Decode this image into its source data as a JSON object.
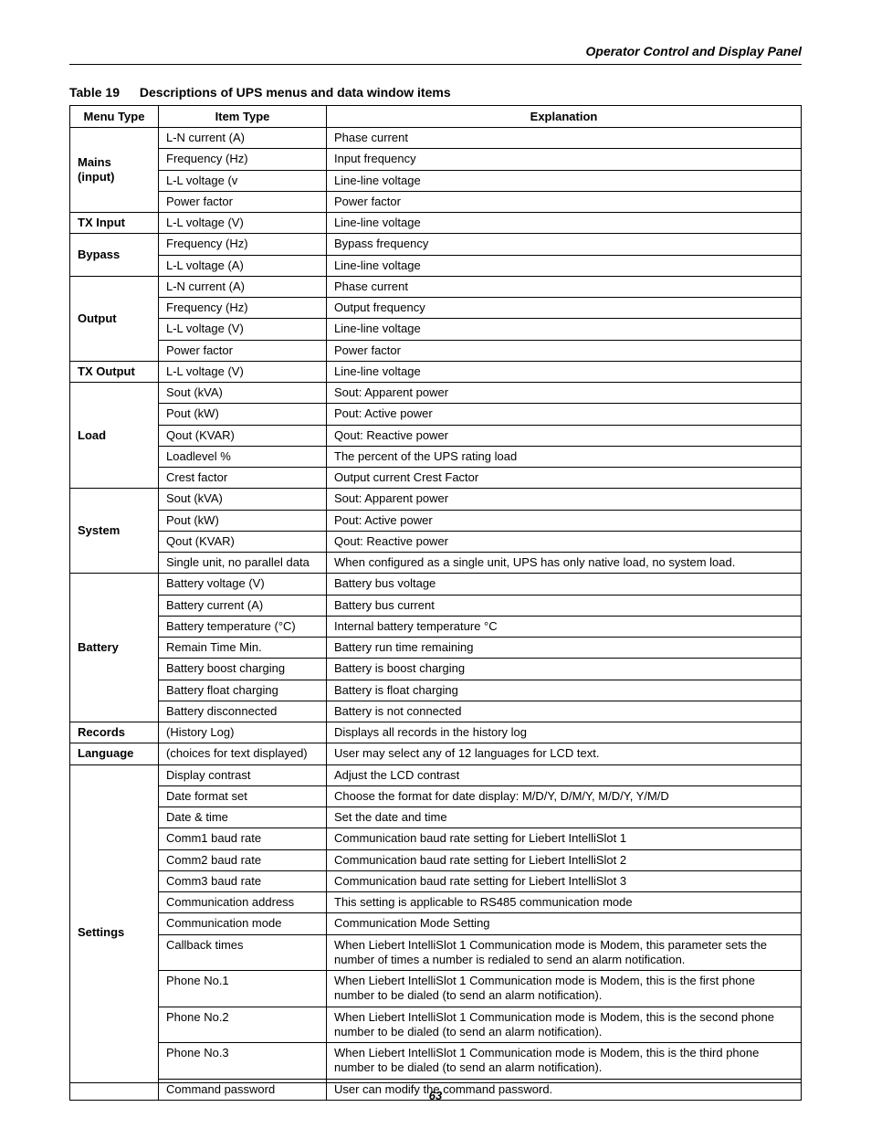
{
  "header": {
    "section_title": "Operator Control and Display Panel"
  },
  "table": {
    "number": "Table 19",
    "title": "Descriptions of UPS menus and data window items",
    "columns": [
      "Menu Type",
      "Item Type",
      "Explanation"
    ],
    "groups": [
      {
        "menu": "Mains (input)",
        "rows": [
          {
            "item": "L-N current (A)",
            "expl": "Phase current"
          },
          {
            "item": "Frequency (Hz)",
            "expl": "Input frequency"
          },
          {
            "item": "L-L voltage (v",
            "expl": "Line-line voltage"
          },
          {
            "item": "Power factor",
            "expl": "Power factor"
          }
        ]
      },
      {
        "menu": "TX Input",
        "rows": [
          {
            "item": "L-L voltage (V)",
            "expl": "Line-line voltage"
          }
        ]
      },
      {
        "menu": "Bypass",
        "rows": [
          {
            "item": "Frequency (Hz)",
            "expl": "Bypass frequency"
          },
          {
            "item": "L-L voltage (A)",
            "expl": "Line-line voltage"
          }
        ]
      },
      {
        "menu": "Output",
        "rows": [
          {
            "item": "L-N current (A)",
            "expl": "Phase current"
          },
          {
            "item": "Frequency (Hz)",
            "expl": "Output frequency"
          },
          {
            "item": "L-L voltage (V)",
            "expl": "Line-line voltage"
          },
          {
            "item": "Power factor",
            "expl": "Power factor"
          }
        ]
      },
      {
        "menu": "TX Output",
        "rows": [
          {
            "item": "L-L voltage (V)",
            "expl": "Line-line voltage"
          }
        ]
      },
      {
        "menu": "Load",
        "rows": [
          {
            "item": "Sout (kVA)",
            "expl": "Sout: Apparent power"
          },
          {
            "item": "Pout (kW)",
            "expl": "Pout: Active power"
          },
          {
            "item": "Qout (KVAR)",
            "expl": "Qout: Reactive power"
          },
          {
            "item": "Loadlevel %",
            "expl": "The percent of the UPS rating load"
          },
          {
            "item": "Crest factor",
            "expl": "Output current Crest Factor"
          }
        ]
      },
      {
        "menu": "System",
        "rows": [
          {
            "item": "Sout (kVA)",
            "expl": "Sout: Apparent power"
          },
          {
            "item": "Pout (kW)",
            "expl": "Pout: Active power"
          },
          {
            "item": "Qout (KVAR)",
            "expl": "Qout: Reactive power"
          },
          {
            "item": "Single unit, no parallel data",
            "expl": "When configured as a single unit, UPS has only native load, no system load."
          }
        ]
      },
      {
        "menu": "Battery",
        "rows": [
          {
            "item": "Battery voltage (V)",
            "expl": "Battery bus voltage"
          },
          {
            "item": "Battery current (A)",
            "expl": "Battery bus current"
          },
          {
            "item": "Battery temperature (°C)",
            "expl": "Internal battery temperature °C"
          },
          {
            "item": "Remain Time Min.",
            "expl": "Battery run time remaining"
          },
          {
            "item": "Battery boost charging",
            "expl": "Battery is boost charging"
          },
          {
            "item": "Battery float charging",
            "expl": "Battery is float charging"
          },
          {
            "item": "Battery disconnected",
            "expl": "Battery is not connected"
          }
        ]
      },
      {
        "menu": "Records",
        "rows": [
          {
            "item": "(History Log)",
            "expl": "Displays all records in the history log"
          }
        ]
      },
      {
        "menu": "Language",
        "rows": [
          {
            "item": "(choices for text displayed)",
            "expl": "User may select any of 12 languages for LCD text."
          }
        ]
      },
      {
        "menu": "Settings",
        "rows": [
          {
            "item": "Display contrast",
            "expl": "Adjust the LCD contrast"
          },
          {
            "item": "Date format set",
            "expl": "Choose the format for date display: M/D/Y, D/M/Y, M/D/Y, Y/M/D"
          },
          {
            "item": "Date & time",
            "expl": "Set the date and time"
          },
          {
            "item": "Comm1 baud rate",
            "expl": "Communication baud rate setting for Liebert IntelliSlot 1"
          },
          {
            "item": "Comm2 baud rate",
            "expl": "Communication baud rate setting for Liebert IntelliSlot 2"
          },
          {
            "item": "Comm3 baud rate",
            "expl": "Communication baud rate setting for Liebert IntelliSlot 3"
          },
          {
            "item": "Communication address",
            "expl": "This setting is applicable to RS485 communication mode"
          },
          {
            "item": "Communication mode",
            "expl": "Communication Mode Setting"
          },
          {
            "item": "Callback times",
            "expl": "When Liebert IntelliSlot 1 Communication mode is Modem, this parameter sets the number of times a number is redialed to send an alarm notification."
          },
          {
            "item": "Phone No.1",
            "expl": "When Liebert IntelliSlot 1 Communication mode is Modem, this is the first phone number to be dialed (to send an alarm notification)."
          },
          {
            "item": "Phone No.2",
            "expl": "When Liebert IntelliSlot 1 Communication mode is Modem, this is the second phone number to be dialed (to send an alarm notification)."
          },
          {
            "item": "Phone No.3",
            "expl": "When Liebert IntelliSlot 1 Communication mode is Modem, this is the third phone number to be dialed (to send an alarm notification)."
          },
          {
            "item": "Command password",
            "expl": "User can modify the command password."
          }
        ]
      }
    ]
  },
  "footer": {
    "page_number": "63"
  }
}
